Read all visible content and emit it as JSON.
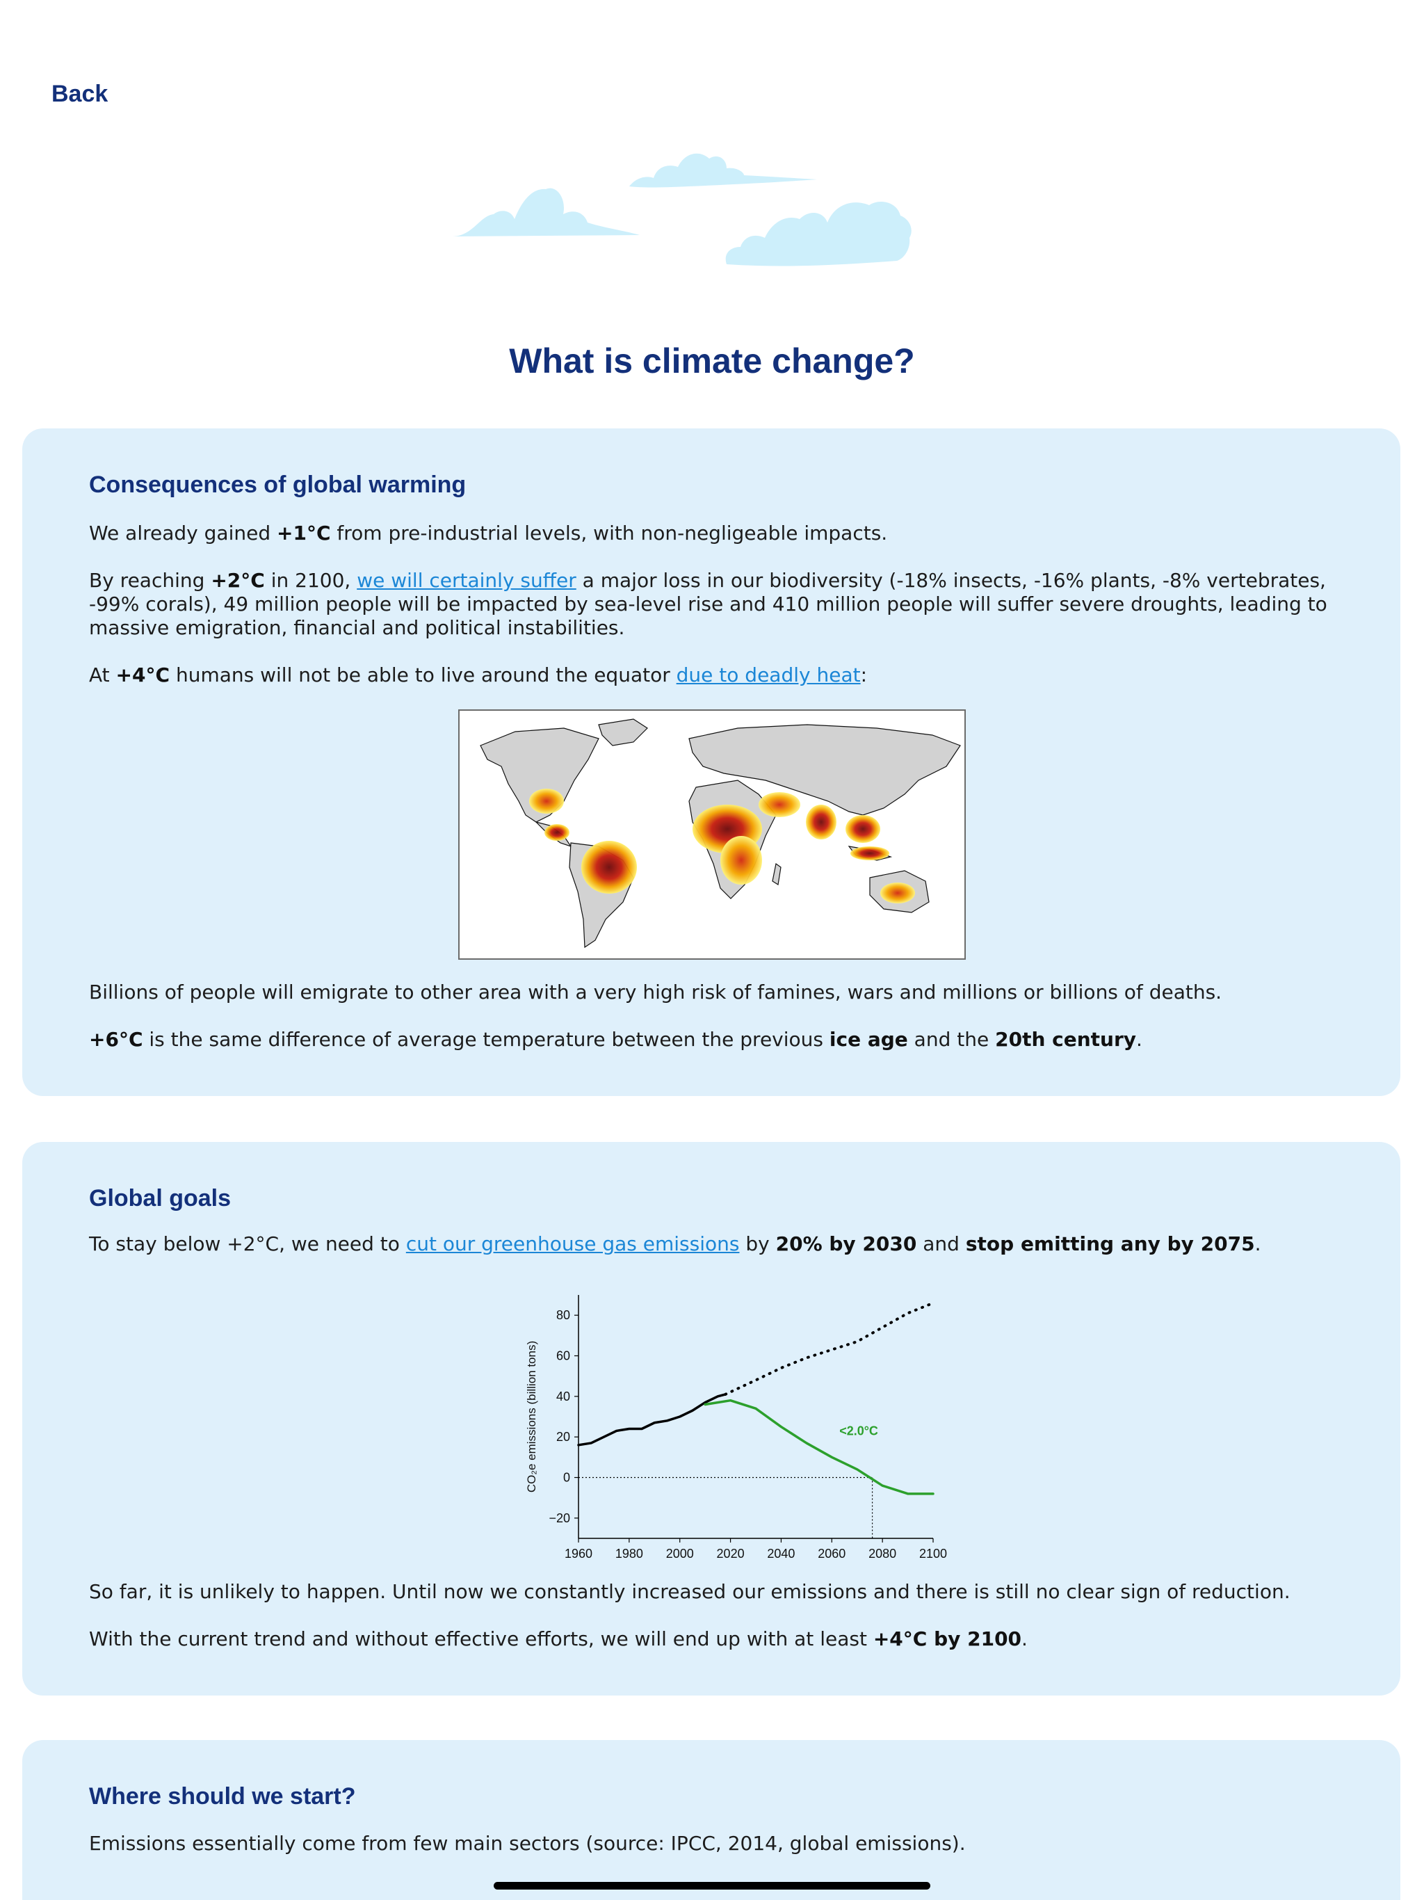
{
  "nav": {
    "back_label": "Back"
  },
  "page": {
    "title": "What is climate change?"
  },
  "sections": {
    "consequences": {
      "heading": "Consequences of global warming",
      "p1": {
        "before": "We already gained ",
        "bold": "+1°C",
        "after": " from pre-industrial levels, with non-negligeable impacts."
      },
      "p2": {
        "before": "By reaching ",
        "bold": "+2°C",
        "middle": " in 2100, ",
        "link": "we will certainly suffer",
        "after": " a major loss in our biodiversity (-18% insects, -16% plants, -8% vertebrates, -99% corals), 49 million people will be impacted by sea-level rise and 410 million people will suffer severe droughts, leading to massive emigration, financial and political instabilities."
      },
      "p3": {
        "before": "At ",
        "bold": "+4°C",
        "middle": " humans will not be able to live around the equator ",
        "link": "due to deadly heat",
        "after": ":"
      },
      "p4": "Billions of people will emigrate to other area with a very high risk of famines, wars and millions or billions of deaths.",
      "p5": {
        "bold1": "+6°C",
        "middle1": " is the same difference of average temperature between the previous ",
        "bold2": "ice age",
        "middle2": " and the ",
        "bold3": "20th century",
        "after": "."
      }
    },
    "goals": {
      "heading": "Global goals",
      "p1": {
        "before": "To stay below +2°C, we need to ",
        "link": "cut our greenhouse gas emissions",
        "middle1": " by ",
        "bold1": "20% by 2030",
        "middle2": " and ",
        "bold2": "stop emitting any by 2075",
        "after": "."
      },
      "p2": "So far, it is unlikely to happen. Until now we constantly increased our emissions and there is still no clear sign of reduction.",
      "p3": {
        "before": "With the current trend and without effective efforts, we will end up with at least ",
        "bold": "+4°C by 2100",
        "after": "."
      }
    },
    "start": {
      "heading": "Where should we start?",
      "p1": "Emissions essentially come from few main sectors (source: IPCC, 2014, global emissions)."
    }
  },
  "colors": {
    "title": "#13307a",
    "card_bg": "#dff0fb",
    "link": "#1b86d6",
    "cloud": "#cdeffb",
    "historical": "#000000",
    "pathway": "#2ca02c"
  },
  "chart_data": {
    "type": "line",
    "ylabel": "CO₂e emissions (billion tons)",
    "xlabel": "",
    "xlim": [
      1960,
      2100
    ],
    "ylim": [
      -30,
      90
    ],
    "x_ticks": [
      1960,
      1980,
      2000,
      2020,
      2040,
      2060,
      2080,
      2100
    ],
    "y_ticks": [
      -20,
      0,
      20,
      40,
      60,
      80
    ],
    "annotation": "<2.0°C",
    "series": [
      {
        "style": "solid-black",
        "x": [
          1960,
          1965,
          1970,
          1975,
          1980,
          1985,
          1990,
          1995,
          2000,
          2005,
          2010,
          2015,
          2018
        ],
        "y": [
          16,
          17,
          20,
          23,
          24,
          24,
          27,
          28,
          30,
          33,
          37,
          40,
          41
        ]
      },
      {
        "style": "dotted-black",
        "x": [
          2018,
          2030,
          2040,
          2050,
          2060,
          2070,
          2080,
          2090,
          2100
        ],
        "y": [
          41,
          48,
          54,
          59,
          63,
          67,
          74,
          81,
          86
        ]
      },
      {
        "name": "<2.0°C",
        "style": "solid-green",
        "x": [
          2010,
          2020,
          2030,
          2040,
          2050,
          2060,
          2070,
          2075,
          2080,
          2090,
          2100
        ],
        "y": [
          36,
          38,
          34,
          25,
          17,
          10,
          4,
          0,
          -4,
          -8,
          -8
        ]
      }
    ],
    "reference": {
      "zero_line_until": 2076,
      "vertical_marker_x": 2076
    }
  }
}
